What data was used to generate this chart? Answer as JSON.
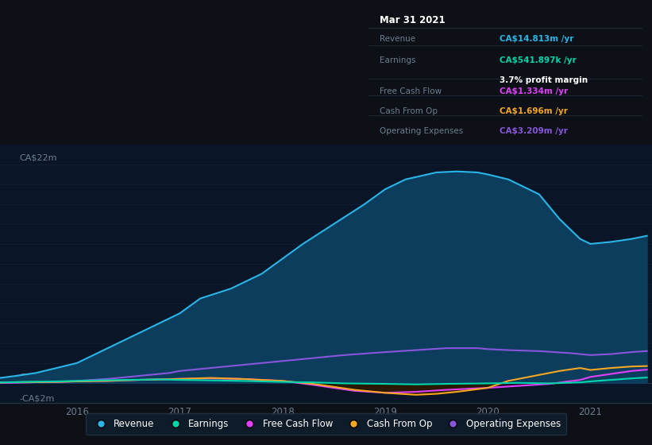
{
  "bg_color": "#0d1117",
  "chart_bg": "#0a1628",
  "grid_color": "#162535",
  "text_color": "#6a7f8f",
  "title_color": "#ffffff",
  "ylim": [
    -2,
    24
  ],
  "xlabel_years": [
    2016,
    2017,
    2018,
    2019,
    2020,
    2021
  ],
  "xlim_start": 2015.25,
  "xlim_end": 2021.6,
  "series": {
    "revenue": {
      "label": "Revenue",
      "color": "#29b5e8",
      "fill_color": "#0d3d5c",
      "x": [
        2015.25,
        2015.4,
        2015.6,
        2015.8,
        2016.0,
        2016.2,
        2016.5,
        2016.8,
        2017.0,
        2017.2,
        2017.5,
        2017.8,
        2018.0,
        2018.2,
        2018.5,
        2018.8,
        2019.0,
        2019.2,
        2019.5,
        2019.7,
        2019.9,
        2020.0,
        2020.2,
        2020.5,
        2020.7,
        2020.9,
        2021.0,
        2021.2,
        2021.4,
        2021.55
      ],
      "y": [
        0.5,
        0.7,
        1.0,
        1.5,
        2.0,
        3.0,
        4.5,
        6.0,
        7.0,
        8.5,
        9.5,
        11.0,
        12.5,
        14.0,
        16.0,
        18.0,
        19.5,
        20.5,
        21.2,
        21.3,
        21.2,
        21.0,
        20.5,
        19.0,
        16.5,
        14.5,
        14.0,
        14.2,
        14.5,
        14.813
      ]
    },
    "earnings": {
      "label": "Earnings",
      "color": "#00d4aa",
      "fill_color": "#003322",
      "x": [
        2015.25,
        2015.5,
        2015.8,
        2016.0,
        2016.2,
        2016.5,
        2016.8,
        2017.0,
        2017.3,
        2017.6,
        2018.0,
        2018.3,
        2018.6,
        2019.0,
        2019.3,
        2019.6,
        2020.0,
        2020.3,
        2020.6,
        2020.9,
        2021.0,
        2021.2,
        2021.4,
        2021.55
      ],
      "y": [
        0.05,
        0.1,
        0.15,
        0.2,
        0.25,
        0.3,
        0.35,
        0.3,
        0.25,
        0.2,
        0.1,
        0.05,
        -0.05,
        -0.1,
        -0.15,
        -0.1,
        -0.05,
        0.0,
        -0.05,
        0.05,
        0.15,
        0.3,
        0.45,
        0.54
      ]
    },
    "free_cash_flow": {
      "label": "Free Cash Flow",
      "color": "#e040fb",
      "fill_color": "#2a0a30",
      "x": [
        2015.25,
        2015.5,
        2015.8,
        2016.0,
        2016.3,
        2016.6,
        2017.0,
        2017.3,
        2017.6,
        2018.0,
        2018.3,
        2018.5,
        2018.7,
        2019.0,
        2019.3,
        2019.6,
        2020.0,
        2020.3,
        2020.6,
        2020.9,
        2021.0,
        2021.2,
        2021.4,
        2021.55
      ],
      "y": [
        0.0,
        0.05,
        0.1,
        0.15,
        0.2,
        0.3,
        0.4,
        0.45,
        0.4,
        0.2,
        -0.2,
        -0.5,
        -0.8,
        -1.0,
        -0.9,
        -0.7,
        -0.5,
        -0.3,
        -0.1,
        0.3,
        0.6,
        0.9,
        1.2,
        1.334
      ]
    },
    "cash_from_op": {
      "label": "Cash From Op",
      "color": "#f5a623",
      "fill_color": "#2a1800",
      "x": [
        2015.25,
        2015.5,
        2015.8,
        2016.0,
        2016.3,
        2016.6,
        2017.0,
        2017.3,
        2017.6,
        2018.0,
        2018.3,
        2018.5,
        2018.7,
        2019.0,
        2019.3,
        2019.5,
        2019.7,
        2020.0,
        2020.2,
        2020.5,
        2020.7,
        2020.9,
        2021.0,
        2021.2,
        2021.4,
        2021.55
      ],
      "y": [
        0.05,
        0.08,
        0.1,
        0.15,
        0.2,
        0.3,
        0.4,
        0.5,
        0.4,
        0.2,
        -0.1,
        -0.4,
        -0.7,
        -1.0,
        -1.2,
        -1.1,
        -0.9,
        -0.5,
        0.2,
        0.8,
        1.2,
        1.5,
        1.3,
        1.5,
        1.65,
        1.696
      ]
    },
    "operating_expenses": {
      "label": "Operating Expenses",
      "color": "#8855dd",
      "fill_color": "#1e0a40",
      "x": [
        2015.25,
        2015.5,
        2015.8,
        2016.0,
        2016.3,
        2016.6,
        2016.9,
        2017.0,
        2017.3,
        2017.6,
        2018.0,
        2018.3,
        2018.6,
        2019.0,
        2019.3,
        2019.6,
        2019.9,
        2020.0,
        2020.2,
        2020.5,
        2020.8,
        2021.0,
        2021.2,
        2021.4,
        2021.55
      ],
      "y": [
        0.0,
        0.05,
        0.1,
        0.2,
        0.4,
        0.7,
        1.0,
        1.2,
        1.5,
        1.8,
        2.2,
        2.5,
        2.8,
        3.1,
        3.3,
        3.5,
        3.5,
        3.4,
        3.3,
        3.2,
        3.0,
        2.8,
        2.9,
        3.1,
        3.209
      ]
    }
  },
  "tooltip": {
    "date": "Mar 31 2021",
    "bg_color": "#050a0f",
    "border_color": "#2a3a4a",
    "title_color": "#ffffff",
    "label_color": "#6a7f8f",
    "rows": [
      {
        "label": "Revenue",
        "value": "CA$14.813m /yr",
        "value_color": "#29b5e8"
      },
      {
        "label": "Earnings",
        "value": "CA$541.897k /yr",
        "value_color": "#00d4aa",
        "extra": "3.7% profit margin",
        "extra_color": "#ffffff"
      },
      {
        "label": "Free Cash Flow",
        "value": "CA$1.334m /yr",
        "value_color": "#e040fb"
      },
      {
        "label": "Cash From Op",
        "value": "CA$1.696m /yr",
        "value_color": "#f5a623"
      },
      {
        "label": "Operating Expenses",
        "value": "CA$3.209m /yr",
        "value_color": "#8855dd"
      }
    ]
  },
  "legend": [
    {
      "label": "Revenue",
      "color": "#29b5e8"
    },
    {
      "label": "Earnings",
      "color": "#00d4aa"
    },
    {
      "label": "Free Cash Flow",
      "color": "#e040fb"
    },
    {
      "label": "Cash From Op",
      "color": "#f5a623"
    },
    {
      "label": "Operating Expenses",
      "color": "#8855dd"
    }
  ]
}
